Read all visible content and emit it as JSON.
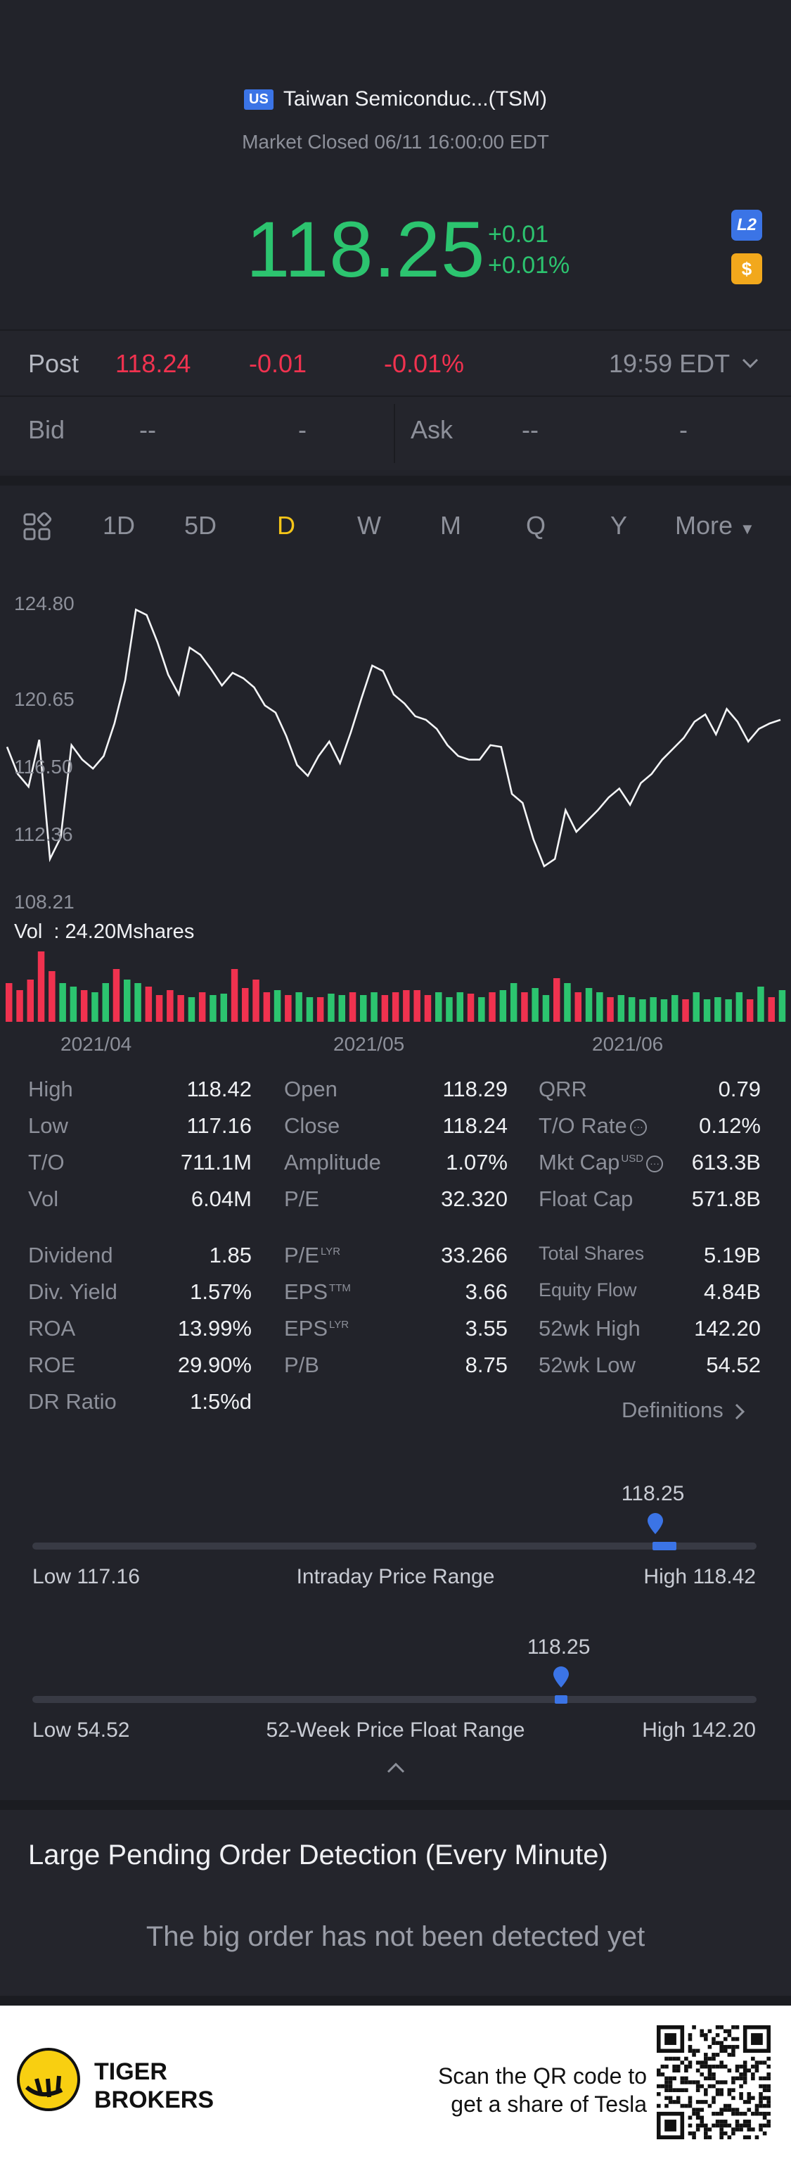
{
  "header": {
    "market_badge": "US",
    "stock_name": "Taiwan Semiconduc...(TSM)",
    "market_status": "Market Closed 06/11 16:00:00 EDT",
    "price": "118.25",
    "change_abs": "+0.01",
    "change_pct": "+0.01%",
    "l2_label": "L2",
    "dollar_label": "$"
  },
  "post": {
    "label": "Post",
    "price": "118.24",
    "change": "-0.01",
    "change_pct": "-0.01%",
    "time": "19:59 EDT"
  },
  "bid_ask": {
    "bid_label": "Bid",
    "bid_price": "--",
    "bid_size": "-",
    "ask_label": "Ask",
    "ask_price": "--",
    "ask_size": "-"
  },
  "tabs": [
    "1D",
    "5D",
    "D",
    "W",
    "M",
    "Q",
    "Y",
    "More"
  ],
  "active_tab": "D",
  "chart": {
    "y_ticks": [
      "124.80",
      "120.65",
      "116.50",
      "112.36",
      "108.21"
    ],
    "volume_label": "Vol  : 24.20Mshares",
    "x_ticks": [
      "2021/04",
      "2021/05",
      "2021/06"
    ]
  },
  "chart_data": {
    "type": "line",
    "ylim": [
      108.21,
      124.8
    ],
    "close": [
      116.8,
      115.3,
      114.6,
      117.2,
      110.6,
      111.8,
      116.9,
      116.1,
      115.6,
      116.3,
      118.1,
      120.5,
      124.4,
      124.1,
      122.6,
      120.8,
      119.7,
      122.3,
      121.9,
      121.1,
      120.2,
      120.9,
      120.6,
      120.1,
      119.1,
      118.7,
      117.4,
      115.8,
      115.2,
      116.3,
      117.1,
      115.9,
      117.6,
      119.5,
      121.3,
      121.0,
      119.7,
      119.2,
      118.5,
      118.3,
      117.8,
      116.9,
      116.3,
      116.1,
      116.1,
      116.9,
      116.8,
      114.2,
      113.7,
      111.7,
      110.2,
      110.6,
      113.3,
      112.1,
      112.7,
      113.3,
      114.0,
      114.5,
      113.6,
      114.8,
      115.3,
      116.1,
      116.7,
      117.3,
      118.2,
      118.6,
      117.5,
      118.9,
      118.2,
      117.1,
      117.8,
      118.1,
      118.3
    ],
    "volume_color": [
      "red",
      "red",
      "red",
      "red",
      "red",
      "green",
      "green",
      "red",
      "green",
      "green",
      "red",
      "green",
      "green",
      "red",
      "red",
      "red",
      "red",
      "green",
      "red",
      "green",
      "green",
      "red",
      "red",
      "red",
      "red",
      "green",
      "red",
      "green",
      "green",
      "red",
      "green",
      "green",
      "red",
      "green",
      "green",
      "red",
      "red",
      "red",
      "red",
      "red",
      "green",
      "green",
      "green",
      "red",
      "green",
      "red",
      "green",
      "green",
      "red",
      "green",
      "green",
      "red",
      "green",
      "red",
      "green",
      "green",
      "red",
      "green",
      "green",
      "green",
      "green",
      "green",
      "green",
      "red",
      "green",
      "green",
      "green",
      "green",
      "green",
      "red",
      "green",
      "red",
      "green"
    ],
    "volume_level": [
      0.55,
      0.45,
      0.6,
      1.0,
      0.72,
      0.55,
      0.5,
      0.45,
      0.42,
      0.55,
      0.75,
      0.6,
      0.55,
      0.5,
      0.38,
      0.45,
      0.38,
      0.35,
      0.42,
      0.38,
      0.4,
      0.75,
      0.48,
      0.6,
      0.42,
      0.45,
      0.38,
      0.42,
      0.35,
      0.35,
      0.4,
      0.38,
      0.42,
      0.38,
      0.42,
      0.38,
      0.42,
      0.45,
      0.45,
      0.38,
      0.42,
      0.35,
      0.42,
      0.4,
      0.35,
      0.42,
      0.45,
      0.55,
      0.42,
      0.48,
      0.38,
      0.62,
      0.55,
      0.42,
      0.48,
      0.42,
      0.35,
      0.38,
      0.35,
      0.32,
      0.35,
      0.32,
      0.38,
      0.32,
      0.42,
      0.32,
      0.35,
      0.32,
      0.42,
      0.32,
      0.5,
      0.35,
      0.45
    ]
  },
  "stats": {
    "col1": [
      {
        "k": "High",
        "v": "118.42"
      },
      {
        "k": "Low",
        "v": "117.16"
      },
      {
        "k": "T/O",
        "v": "711.1M"
      },
      {
        "k": "Vol",
        "v": "6.04M"
      },
      {
        "k": "Dividend",
        "v": "1.85"
      },
      {
        "k": "Div. Yield",
        "v": "1.57%"
      },
      {
        "k": "ROA",
        "v": "13.99%"
      },
      {
        "k": "ROE",
        "v": "29.90%"
      },
      {
        "k": "DR Ratio",
        "v": "1:5%d"
      }
    ],
    "col2": [
      {
        "k": "Open",
        "v": "118.29"
      },
      {
        "k": "Close",
        "v": "118.24"
      },
      {
        "k": "Amplitude",
        "v": "1.07%"
      },
      {
        "k": "P/E",
        "v": "32.320"
      },
      {
        "k": "P/E",
        "sup": "LYR",
        "v": "33.266"
      },
      {
        "k": "EPS",
        "sup": "TTM",
        "v": "3.66"
      },
      {
        "k": "EPS",
        "sup": "LYR",
        "v": "3.55"
      },
      {
        "k": "P/B",
        "v": "8.75"
      }
    ],
    "col3": [
      {
        "k": "QRR",
        "v": "0.79"
      },
      {
        "k": "T/O Rate",
        "v": "0.12%"
      },
      {
        "k": "Mkt Cap",
        "sup": "USD",
        "v": "613.3B"
      },
      {
        "k": "Float Cap",
        "v": "571.8B"
      },
      {
        "k": "Total Shares",
        "v": "5.19B"
      },
      {
        "k": "Equity Flow",
        "v": "4.84B"
      },
      {
        "k": "52wk High",
        "v": "142.20"
      },
      {
        "k": "52wk Low",
        "v": "54.52"
      }
    ],
    "definitions": "Definitions"
  },
  "intraday_range": {
    "value": "118.25",
    "low": "Low 117.16",
    "title": "Intraday Price Range",
    "high": "High 118.42",
    "position_fraction": 0.86
  },
  "week52_range": {
    "value": "118.25",
    "low": "Low 54.52",
    "title": "52-Week Price Float Range",
    "high": "High 142.20",
    "position_fraction": 0.73
  },
  "large_order": {
    "title": "Large Pending Order Detection (Every Minute)",
    "message": "The big order has not been detected yet"
  },
  "footer": {
    "brand_line1": "TIGER",
    "brand_line2": "BROKERS",
    "scan_line1": "Scan the QR code to",
    "scan_line2": "get a share of Tesla"
  },
  "colors": {
    "up": "#2cc46f",
    "down": "#f0324f",
    "accent": "#3b74e6",
    "active_tab": "#f5c518"
  }
}
